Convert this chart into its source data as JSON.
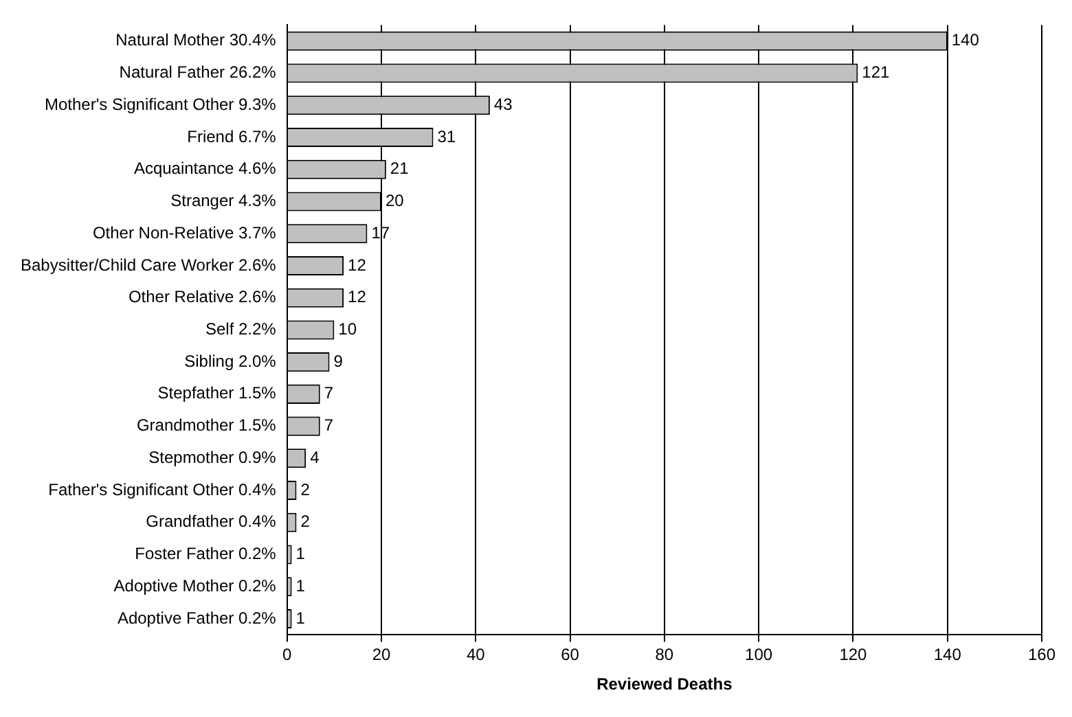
{
  "chart_data": {
    "type": "bar",
    "orientation": "horizontal",
    "xlabel": "Reviewed Deaths",
    "categories": [
      "Natural Mother 30.4%",
      "Natural Father 26.2%",
      "Mother's Significant Other 9.3%",
      "Friend 6.7%",
      "Acquaintance 4.6%",
      "Stranger 4.3%",
      "Other Non-Relative 3.7%",
      "Babysitter/Child Care Worker 2.6%",
      "Other Relative 2.6%",
      "Self 2.2%",
      "Sibling 2.0%",
      "Stepfather 1.5%",
      "Grandmother 1.5%",
      "Stepmother 0.9%",
      "Father's Significant Other 0.4%",
      "Grandfather 0.4%",
      "Foster Father 0.2%",
      "Adoptive Mother 0.2%",
      "Adoptive Father 0.2%"
    ],
    "values": [
      140,
      121,
      43,
      31,
      21,
      20,
      17,
      12,
      12,
      10,
      9,
      7,
      7,
      4,
      2,
      2,
      1,
      1,
      1
    ],
    "color": "#c0c0c0",
    "data_labels": true,
    "grid": "x",
    "xlim": [
      0,
      160
    ],
    "xticks": [
      0,
      20,
      40,
      60,
      80,
      100,
      120,
      140,
      160
    ]
  }
}
